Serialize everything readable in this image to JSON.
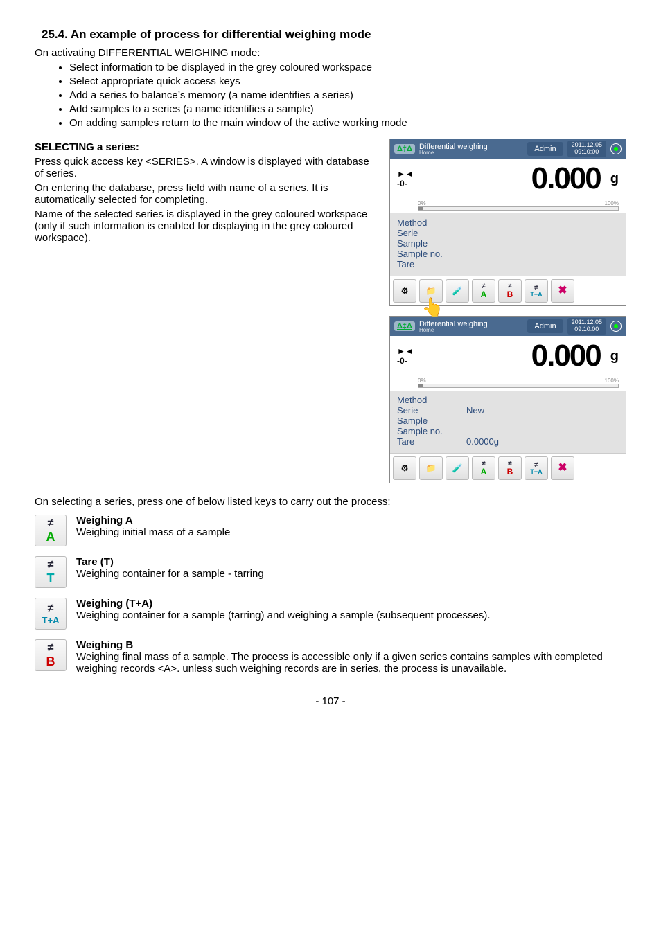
{
  "heading": "25.4. An example of process for differential weighing mode",
  "intro": "On activating DIFFERENTIAL WEIGHING mode:",
  "bullets": [
    "Select information to be displayed in the grey coloured workspace",
    "Select appropriate quick access keys",
    "Add a series to balance’s memory (a name identifies a series)",
    "Add samples to a series (a name identifies a sample)",
    "On adding samples return to the main window of the active working mode"
  ],
  "select_heading": "SELECTING a series:",
  "select_para1": "Press quick access key <SERIES>. A window is displayed with database of series.",
  "select_para2": "On entering the database, press field with name of a series. It is automatically selected for completing.",
  "select_para3": "Name of the selected series is displayed in the grey coloured workspace (only if such information is enabled for displaying in the grey coloured workspace).",
  "screenshot": {
    "delta_label": "Δ‡Δ",
    "title": "Differential weighing",
    "subtitle": "Home",
    "admin": "Admin",
    "date": "2011.12.05",
    "time": "09:10:00",
    "zero_mark_top": "►◄",
    "zero_mark": "-0-",
    "percent": "0%",
    "big_value": "0.000",
    "unit": "g",
    "hundred": "100%",
    "rows_empty": {
      "method": "Method",
      "serie": "Serie",
      "sample": "Sample",
      "sample_no": "Sample no.",
      "tare": "Tare"
    },
    "rows_filled": {
      "method": "Method",
      "serie": "Serie",
      "serie_v": "New",
      "sample": "Sample",
      "sample_no": "Sample no.",
      "tare": "Tare",
      "tare_v": "0.0000g"
    },
    "toolbar": {
      "ne": "≠",
      "a": "A",
      "b": "B",
      "ta": "T+A",
      "x": "✖"
    },
    "hand": "👆"
  },
  "onselect_text": "On selecting a series, press one of below listed keys to carry out the process:",
  "tiles": {
    "weighA": {
      "title": "Weighing A",
      "desc": "Weighing initial mass of a sample"
    },
    "tareT": {
      "title": "Tare (T)",
      "desc": "Weighing container for a sample - tarring"
    },
    "weighTA": {
      "title": "Weighing (T+A)",
      "desc": "Weighing container for a sample (tarring) and weighing a sample (subsequent processes)."
    },
    "weighB": {
      "title": "Weighing B",
      "desc": "Weighing final mass of a sample. The process is accessible only if a given series contains samples with completed weighing records <A>. unless such weighing records are in series, the process is unavailable."
    }
  },
  "page": "- 107 -"
}
